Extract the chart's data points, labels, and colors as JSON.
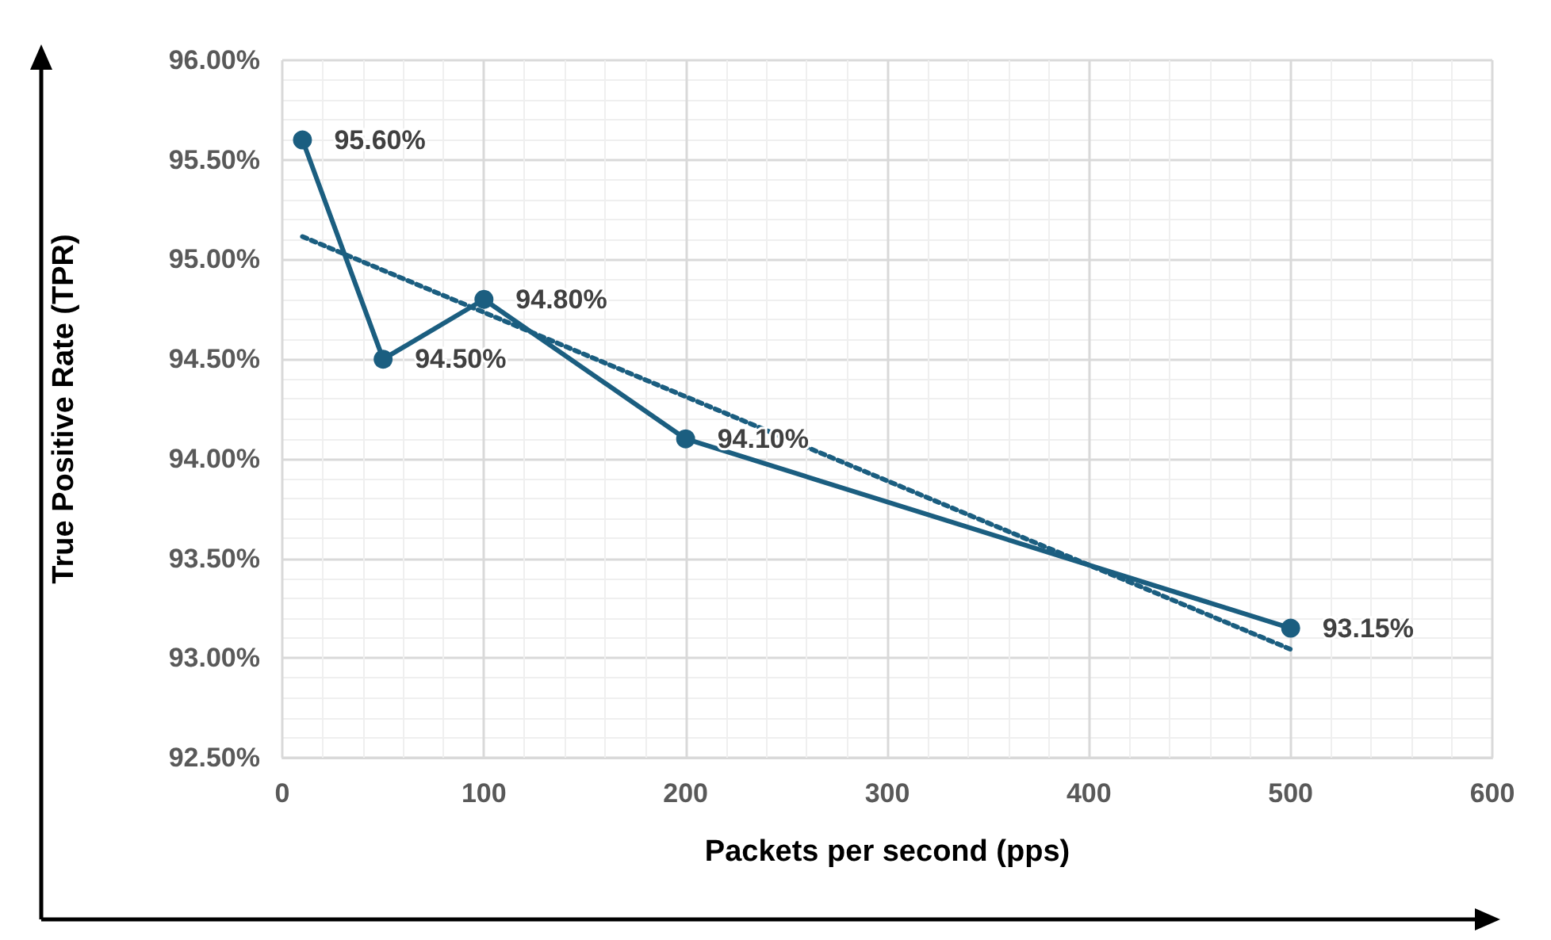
{
  "chart_data": {
    "type": "line",
    "xlabel": "Packets per second (pps)",
    "ylabel": "True Positive Rate (TPR)",
    "x": [
      10,
      50,
      100,
      200,
      500
    ],
    "series": [
      {
        "color": "#1b5e80",
        "values": [
          95.6,
          94.5,
          94.8,
          94.1,
          93.15
        ],
        "value_labels": [
          "95.60%",
          "94.50%",
          "94.80%",
          "94.10%",
          "93.15%"
        ],
        "marker": "circle",
        "line_style": "solid"
      },
      {
        "type": "line",
        "x": [
          10,
          500
        ],
        "color": "#1b5e80",
        "values": [
          95.115,
          93.044
        ],
        "marker": "none",
        "line_style": "dotted"
      }
    ],
    "xlim": [
      0,
      600
    ],
    "xticks": [
      0,
      100,
      200,
      300,
      400,
      500,
      600
    ],
    "ylim": [
      92.5,
      96
    ],
    "yticks": [
      {
        "value": 92.5,
        "label": "92.50%"
      },
      {
        "value": 93,
        "label": "93.00%"
      },
      {
        "value": 93.5,
        "label": "93.50%"
      },
      {
        "value": 94,
        "label": "94.00%"
      },
      {
        "value": 94.5,
        "label": "94.50%"
      },
      {
        "value": 95,
        "label": "95.00%"
      },
      {
        "value": 95.5,
        "label": "95.50%"
      },
      {
        "value": 96,
        "label": "96.00%"
      }
    ],
    "grid": true
  }
}
